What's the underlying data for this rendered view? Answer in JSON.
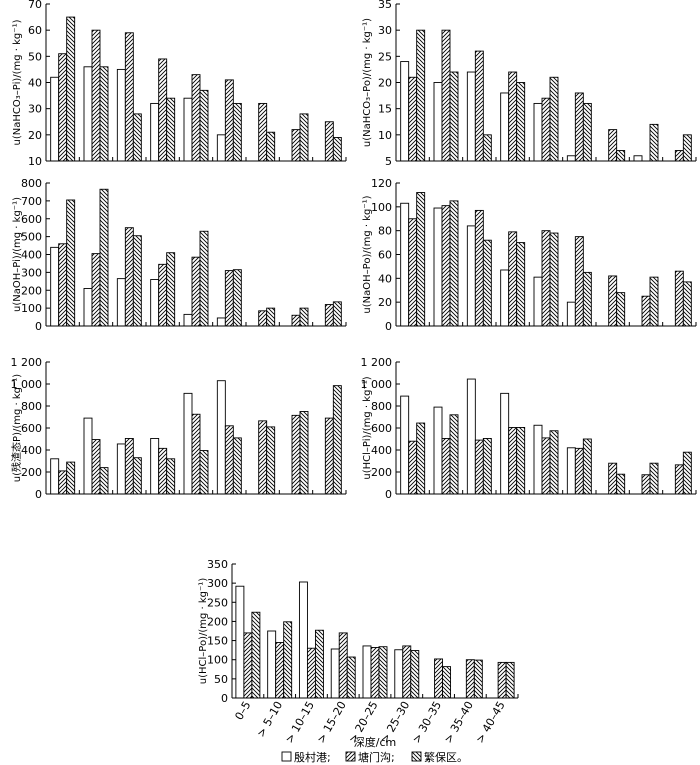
{
  "figure": {
    "xlabel": "深度/cm",
    "legend": {
      "items": [
        {
          "label": "殷村港;",
          "pattern": "empty"
        },
        {
          "label": "塘门沟;",
          "pattern": "diag-right"
        },
        {
          "label": "繁保区。",
          "pattern": "diag-left"
        }
      ]
    },
    "categories": [
      "0–5",
      "> 5–10",
      "> 10–15",
      "> 15–20",
      "> 20–25",
      "> 25–30",
      "> 30–35",
      "> 35–40",
      "> 40–45"
    ]
  },
  "chart_data": [
    {
      "type": "bar",
      "ylabel": "u(NaHCO₃–Pi)/(mg · kg⁻¹)",
      "ylim": [
        10,
        70
      ],
      "yticks": [
        "10",
        "20",
        "30",
        "40",
        "50",
        "60",
        "70"
      ],
      "categories": [
        "0–5",
        "> 5–10",
        "> 10–15",
        "> 15–20",
        "> 20–25",
        "> 25–30",
        "> 30–35",
        "> 35–40",
        "> 40–45"
      ],
      "series": [
        {
          "name": "殷村港",
          "values": [
            42,
            46,
            45,
            32,
            34,
            20,
            null,
            null,
            null
          ]
        },
        {
          "name": "塘门沟",
          "values": [
            51,
            60,
            59,
            49,
            43,
            41,
            32,
            22,
            25
          ]
        },
        {
          "name": "繁保区",
          "values": [
            65,
            46,
            28,
            34,
            37,
            32,
            21,
            28,
            19
          ]
        }
      ]
    },
    {
      "type": "bar",
      "ylabel": "u(NaHCO₃–Po)/(mg · kg⁻¹)",
      "ylim": [
        5,
        35
      ],
      "yticks": [
        "5",
        "10",
        "15",
        "20",
        "25",
        "30",
        "35"
      ],
      "categories": [
        "0–5",
        "> 5–10",
        "> 10–15",
        "> 15–20",
        "> 20–25",
        "> 25–30",
        "> 30–35",
        "> 35–40",
        "> 40–45"
      ],
      "series": [
        {
          "name": "殷村港",
          "values": [
            24,
            20,
            22,
            18,
            16,
            6,
            null,
            6,
            null
          ]
        },
        {
          "name": "塘门沟",
          "values": [
            21,
            30,
            26,
            22,
            17,
            18,
            11,
            null,
            7
          ]
        },
        {
          "name": "繁保区",
          "values": [
            30,
            22,
            10,
            20,
            21,
            16,
            7,
            12,
            10
          ]
        }
      ]
    },
    {
      "type": "bar",
      "ylabel": "u(NaOH–Pi)/(mg · kg⁻¹)",
      "ylim": [
        0,
        800
      ],
      "yticks": [
        "0",
        "100",
        "200",
        "300",
        "400",
        "500",
        "600",
        "700",
        "800"
      ],
      "categories": [
        "0–5",
        "> 5–10",
        "> 10–15",
        "> 15–20",
        "> 20–25",
        "> 25–30",
        "> 30–35",
        "> 35–40",
        "> 40–45"
      ],
      "series": [
        {
          "name": "殷村港",
          "values": [
            440,
            210,
            265,
            260,
            65,
            45,
            null,
            null,
            null
          ]
        },
        {
          "name": "塘门沟",
          "values": [
            460,
            405,
            550,
            345,
            385,
            310,
            85,
            60,
            120
          ]
        },
        {
          "name": "繁保区",
          "values": [
            705,
            765,
            505,
            410,
            530,
            315,
            100,
            100,
            135
          ]
        }
      ]
    },
    {
      "type": "bar",
      "ylabel": "u(NaOH–Po)/(mg · kg⁻¹)",
      "ylim": [
        0,
        120
      ],
      "yticks": [
        "0",
        "20",
        "40",
        "60",
        "80",
        "100",
        "120"
      ],
      "categories": [
        "0–5",
        "> 5–10",
        "> 10–15",
        "> 15–20",
        "> 20–25",
        "> 25–30",
        "> 30–35",
        "> 35–40",
        "> 40–45"
      ],
      "series": [
        {
          "name": "殷村港",
          "values": [
            103,
            99,
            84,
            47,
            41,
            20,
            null,
            null,
            null
          ]
        },
        {
          "name": "塘门沟",
          "values": [
            90,
            101,
            97,
            79,
            80,
            75,
            42,
            25,
            46
          ]
        },
        {
          "name": "繁保区",
          "values": [
            112,
            105,
            72,
            70,
            78,
            45,
            28,
            41,
            37
          ]
        }
      ]
    },
    {
      "type": "bar",
      "ylabel": "u(残渣态P)/(mg · kg⁻¹)",
      "ylim": [
        0,
        1200
      ],
      "yticks": [
        "0",
        "200",
        "400",
        "600",
        "800",
        "1 000",
        "1 200"
      ],
      "categories": [
        "0–5",
        "> 5–10",
        "> 10–15",
        "> 15–20",
        "> 20–25",
        "> 25–30",
        "> 30–35",
        "> 35–40",
        "> 40–45"
      ],
      "series": [
        {
          "name": "殷村港",
          "values": [
            320,
            690,
            455,
            505,
            915,
            1030,
            null,
            null,
            null
          ]
        },
        {
          "name": "塘门沟",
          "values": [
            210,
            495,
            505,
            415,
            725,
            620,
            665,
            715,
            690
          ]
        },
        {
          "name": "繁保区",
          "values": [
            290,
            240,
            330,
            320,
            395,
            510,
            610,
            750,
            985
          ]
        }
      ]
    },
    {
      "type": "bar",
      "ylabel": "u(HCl–Pi)/(mg · kg⁻¹)",
      "ylim": [
        0,
        1200
      ],
      "yticks": [
        "0",
        "200",
        "400",
        "600",
        "800",
        "1 000",
        "1 200"
      ],
      "categories": [
        "0–5",
        "> 5–10",
        "> 10–15",
        "> 15–20",
        "> 20–25",
        "> 25–30",
        "> 30–35",
        "> 35–40",
        "> 40–45"
      ],
      "series": [
        {
          "name": "殷村港",
          "values": [
            890,
            790,
            1045,
            915,
            625,
            420,
            null,
            null,
            null
          ]
        },
        {
          "name": "塘门沟",
          "values": [
            480,
            505,
            490,
            605,
            510,
            415,
            280,
            175,
            265
          ]
        },
        {
          "name": "繁保区",
          "values": [
            645,
            720,
            505,
            605,
            575,
            500,
            180,
            280,
            380
          ]
        }
      ]
    },
    {
      "type": "bar",
      "ylabel": "u(HCl–Po)/(mg · kg⁻¹)",
      "ylim": [
        0,
        350
      ],
      "yticks": [
        "0",
        "50",
        "100",
        "150",
        "200",
        "250",
        "300",
        "350"
      ],
      "categories": [
        "0–5",
        "> 5–10",
        "> 10–15",
        "> 15–20",
        "> 20–25",
        "> 25–30",
        "> 30–35",
        "> 35–40",
        "> 40–45"
      ],
      "series": [
        {
          "name": "殷村港",
          "values": [
            292,
            175,
            303,
            128,
            136,
            126,
            null,
            null,
            null
          ]
        },
        {
          "name": "塘门沟",
          "values": [
            170,
            145,
            130,
            170,
            132,
            136,
            102,
            100,
            93
          ]
        },
        {
          "name": "繁保区",
          "values": [
            224,
            199,
            177,
            107,
            134,
            124,
            82,
            99,
            93
          ]
        }
      ]
    }
  ]
}
